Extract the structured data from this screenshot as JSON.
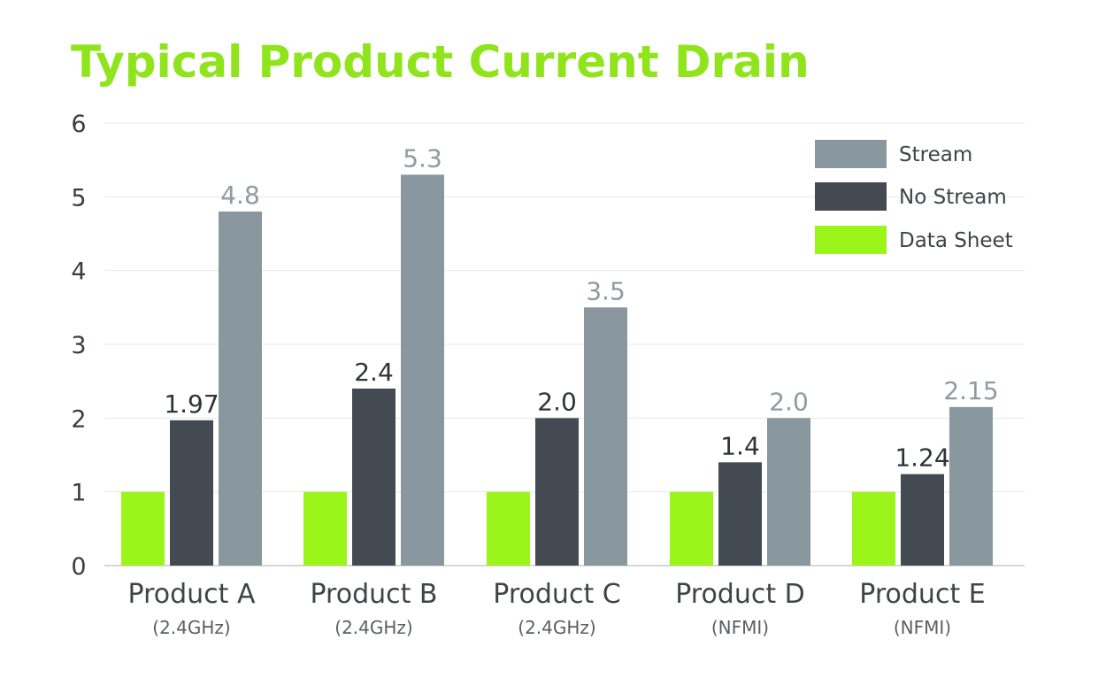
{
  "chart_data": {
    "type": "bar",
    "title": "Typical Product Current Drain",
    "xlabel": "",
    "ylabel": "",
    "ylim": [
      0,
      6
    ],
    "yticks": [
      0,
      1,
      2,
      3,
      4,
      5,
      6
    ],
    "grid": true,
    "legend_position": "top-right",
    "categories": [
      "Product A",
      "Product B",
      "Product C",
      "Product D",
      "Product E"
    ],
    "category_sublabels": [
      "(2.4GHz)",
      "(2.4GHz)",
      "(2.4GHz)",
      "(NFMI)",
      "(NFMI)"
    ],
    "series": [
      {
        "name": "Data Sheet",
        "color": "#9cf51a",
        "values": [
          1,
          1,
          1,
          1,
          1
        ],
        "data_labels": [
          null,
          null,
          null,
          null,
          null
        ]
      },
      {
        "name": "No Stream",
        "color": "#434a52",
        "values": [
          1.97,
          2.4,
          2.0,
          1.4,
          1.24
        ],
        "data_labels": [
          "1.97",
          "2.4",
          "2.0",
          "1.4",
          "1.24"
        ]
      },
      {
        "name": "Stream",
        "color": "#88989e",
        "values": [
          4.8,
          5.3,
          3.5,
          2.0,
          2.15
        ],
        "data_labels": [
          "4.8",
          "5.3",
          "3.5",
          "2.0",
          "2.15"
        ]
      }
    ],
    "legend_order": [
      "Stream",
      "No Stream",
      "Data Sheet"
    ],
    "colors": {
      "title": "#8fe41c",
      "grid": "#e8e8e8",
      "axis": "#d6d6d6",
      "stream_label": "#8e9ba1",
      "nostream_label": "#2f3338"
    }
  }
}
